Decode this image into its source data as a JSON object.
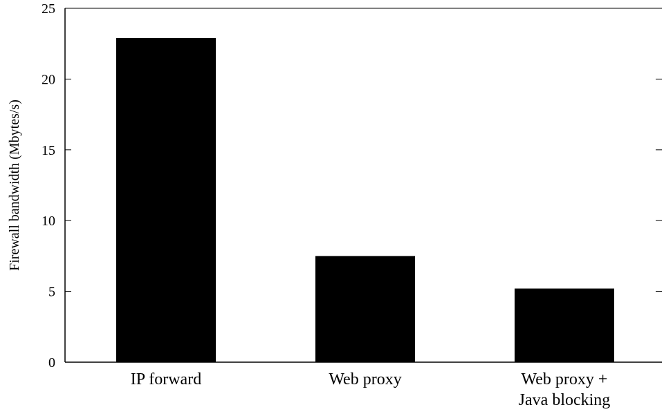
{
  "chart_data": {
    "type": "bar",
    "title": "",
    "xlabel": "",
    "ylabel": "Firewall bandwidth (Mbytes/s)",
    "categories": [
      [
        "IP forward"
      ],
      [
        "Web proxy"
      ],
      [
        "Web proxy +",
        "Java blocking"
      ]
    ],
    "values": [
      22.9,
      7.5,
      5.2
    ],
    "ylim": [
      0,
      25
    ],
    "yticks": [
      0,
      5,
      10,
      15,
      20,
      25
    ],
    "grid": false,
    "colors": {
      "bar": "#000000",
      "axis": "#000000"
    }
  }
}
